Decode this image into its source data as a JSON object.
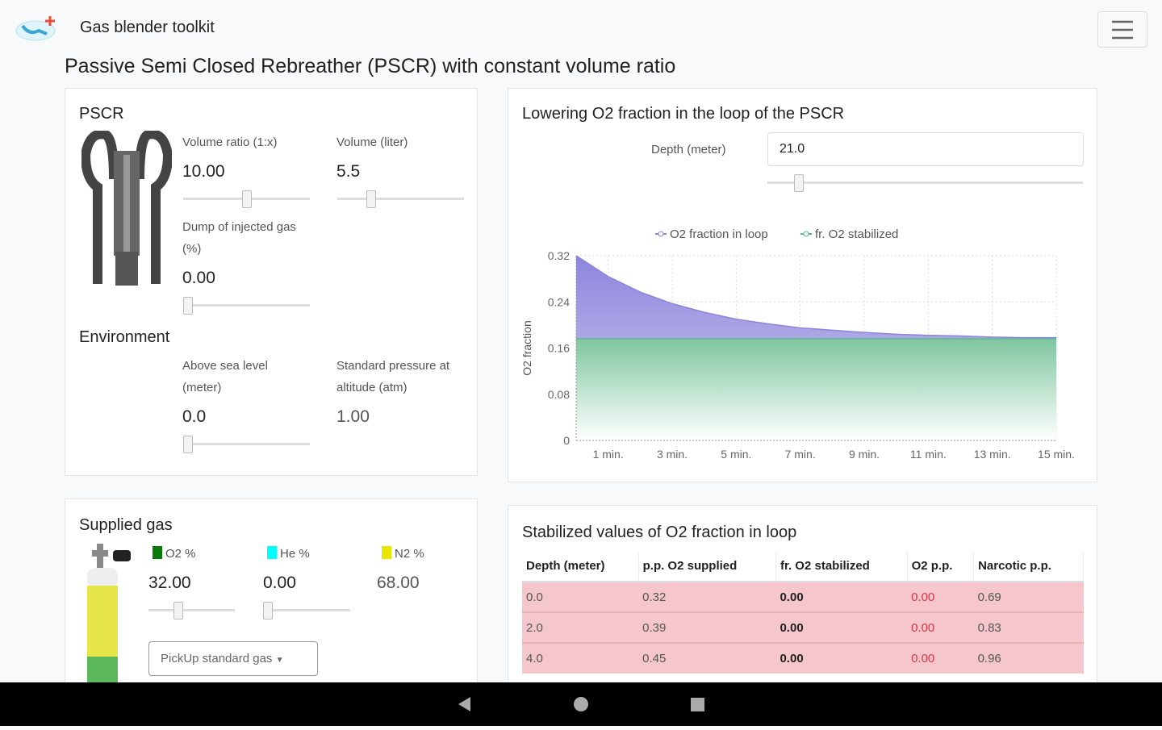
{
  "app": {
    "title": "Gas blender toolkit",
    "menu_icon": "hamburger-icon"
  },
  "page_title": "Passive Semi Closed Rebreather (PSCR) with constant volume ratio",
  "pscr": {
    "title": "PSCR",
    "volume_ratio": {
      "label": "Volume ratio (1:x)",
      "value": "10.00",
      "slider": 0.5
    },
    "volume": {
      "label": "Volume (liter)",
      "value": "5.5",
      "slider": 0.27
    },
    "dump": {
      "label": "Dump of injected gas (%)",
      "value": "0.00",
      "slider": 0
    }
  },
  "environment": {
    "title": "Environment",
    "altitude": {
      "label": "Above sea level (meter)",
      "value": "0.0",
      "slider": 0
    },
    "pressure": {
      "label": "Standard pressure at altitude (atm)",
      "value": "1.00"
    }
  },
  "supplied": {
    "title": "Supplied gas",
    "o2": {
      "label": "O2 %",
      "value": "32.00",
      "slider": 0.35,
      "color": "#0a7a0a"
    },
    "he": {
      "label": "He %",
      "value": "0.00",
      "slider": 0,
      "color": "#00ffff"
    },
    "n2": {
      "label": "N2 %",
      "value": "68.00",
      "color": "#e6e600"
    },
    "pickup": "PickUp standard gas"
  },
  "chart_card": {
    "title": "Lowering O2 fraction in the loop of the PSCR",
    "depth_label": "Depth (meter)",
    "depth_value": "21.0",
    "depth_slider": 0.1
  },
  "chart_data": {
    "type": "area",
    "ylabel": "O2 fraction",
    "ylim": [
      0,
      0.32
    ],
    "xlim": [
      0,
      15
    ],
    "yticks": [
      "0",
      "0.08",
      "0.16",
      "0.24",
      "0.32"
    ],
    "xticks": [
      {
        "x": 1,
        "label": "1 min."
      },
      {
        "x": 3,
        "label": "3 min."
      },
      {
        "x": 5,
        "label": "5 min."
      },
      {
        "x": 7,
        "label": "7 min."
      },
      {
        "x": 9,
        "label": "9 min."
      },
      {
        "x": 11,
        "label": "11 min."
      },
      {
        "x": 13,
        "label": "13 min."
      },
      {
        "x": 15,
        "label": "15 min."
      }
    ],
    "legend": "top",
    "series": [
      {
        "name": "O2 fraction in loop",
        "color": "#8c84dc",
        "x": [
          0,
          1,
          2,
          3,
          4,
          5,
          6,
          7,
          8,
          9,
          10,
          11,
          12,
          13,
          14,
          15
        ],
        "values": [
          0.32,
          0.284,
          0.257,
          0.237,
          0.222,
          0.21,
          0.202,
          0.195,
          0.191,
          0.187,
          0.184,
          0.182,
          0.181,
          0.179,
          0.178,
          0.178
        ]
      },
      {
        "name": "fr. O2 stabilized",
        "color": "#5cb88a",
        "x": [
          0,
          15
        ],
        "values": [
          0.176,
          0.176
        ]
      }
    ]
  },
  "table": {
    "title": "Stabilized values of O2 fraction in loop",
    "headers": [
      "Depth (meter)",
      "p.p. O2 supplied",
      "fr. O2 stabilized",
      "O2 p.p.",
      "Narcotic p.p."
    ],
    "rows": [
      [
        "0.0",
        "0.32",
        "0.00",
        "0.00",
        "0.69"
      ],
      [
        "2.0",
        "0.39",
        "0.00",
        "0.00",
        "0.83"
      ],
      [
        "4.0",
        "0.45",
        "0.00",
        "0.00",
        "0.96"
      ]
    ]
  }
}
